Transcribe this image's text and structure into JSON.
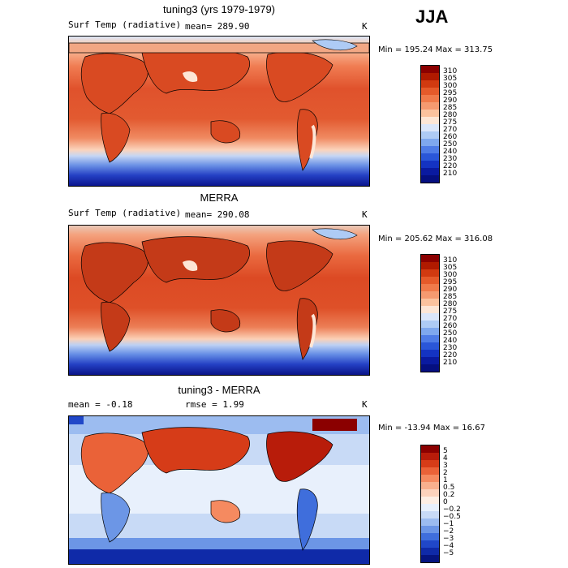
{
  "season": "JJA",
  "panels": [
    {
      "title": "tuning3 (yrs 1979-1979)",
      "variable": "Surf Temp (radiative)",
      "stat_text": "mean= 289.90",
      "unit": "K",
      "minmax": "Min = 195.24  Max = 313.75",
      "colorbar": {
        "labels": [
          "310",
          "305",
          "300",
          "295",
          "290",
          "285",
          "280",
          "275",
          "270",
          "260",
          "250",
          "240",
          "230",
          "220",
          "210"
        ],
        "colors": [
          "#8b0000",
          "#b01a00",
          "#d13a10",
          "#e55a2a",
          "#f07a4a",
          "#f59a70",
          "#fbc29e",
          "#fde6d6",
          "#dbe6fa",
          "#aecbf5",
          "#7fa8ee",
          "#4f7ce6",
          "#2a56d8",
          "#1433c2",
          "#0a1aa0",
          "#050f80"
        ]
      }
    },
    {
      "title": "MERRA",
      "variable": "Surf Temp (radiative)",
      "stat_text": "mean= 290.08",
      "unit": "K",
      "minmax": "Min = 205.62  Max = 316.08",
      "colorbar": {
        "labels": [
          "310",
          "305",
          "300",
          "295",
          "290",
          "285",
          "280",
          "275",
          "270",
          "260",
          "250",
          "240",
          "230",
          "220",
          "210"
        ],
        "colors": [
          "#8b0000",
          "#b01a00",
          "#d13a10",
          "#e55a2a",
          "#f07a4a",
          "#f59a70",
          "#fbc29e",
          "#fde6d6",
          "#dbe6fa",
          "#aecbf5",
          "#7fa8ee",
          "#4f7ce6",
          "#2a56d8",
          "#1433c2",
          "#0a1aa0",
          "#050f80"
        ]
      }
    },
    {
      "title": "tuning3 - MERRA",
      "stat_text": "mean =   -0.18",
      "rmse_text": "rmse =    1.99",
      "unit": "K",
      "minmax": "Min = -13.94  Max =   16.67",
      "colorbar": {
        "labels": [
          "5",
          "4",
          "3",
          "2",
          "1",
          "0.5",
          "0.2",
          "0",
          "−0.2",
          "−0.5",
          "−1",
          "−2",
          "−3",
          "−4",
          "−5"
        ],
        "colors": [
          "#8b0000",
          "#b81c0a",
          "#d63c18",
          "#ea6238",
          "#f58a60",
          "#f9b08e",
          "#fcd2bc",
          "#fdeee4",
          "#e8f0fc",
          "#c8daf6",
          "#9cbcf0",
          "#6c96e6",
          "#3f6edc",
          "#2047c8",
          "#0f2aa8",
          "#051480"
        ]
      }
    }
  ]
}
